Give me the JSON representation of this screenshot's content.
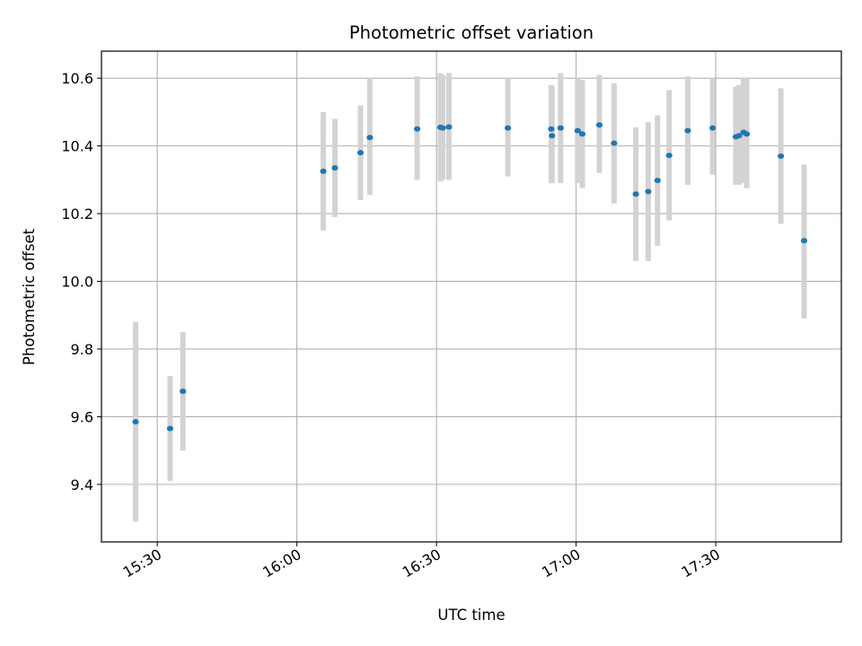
{
  "chart_data": {
    "type": "scatter",
    "title": "Photometric offset variation",
    "xlabel": "UTC time",
    "ylabel": "Photometric offset",
    "x_unit": "UTC time (HH:MM)",
    "xlim": [
      "15:18",
      "17:57"
    ],
    "ylim": [
      9.23,
      10.68
    ],
    "x_ticks": [
      "15:30",
      "16:00",
      "16:30",
      "17:00",
      "17:30"
    ],
    "y_ticks": [
      9.4,
      9.6,
      9.8,
      10.0,
      10.2,
      10.4,
      10.6
    ],
    "y_tick_labels": [
      "9.4",
      "9.6",
      "9.8",
      "10.0",
      "10.2",
      "10.4",
      "10.6"
    ],
    "grid": true,
    "legend": "none",
    "colors": {
      "point": "#1f77b4",
      "errorbar": "#d3d3d3",
      "grid": "#b0b0b0"
    },
    "points": [
      {
        "x": "15:25:20",
        "y": 9.585,
        "ylow": 9.29,
        "yhigh": 9.88
      },
      {
        "x": "15:32:45",
        "y": 9.565,
        "ylow": 9.41,
        "yhigh": 9.72
      },
      {
        "x": "15:35:30",
        "y": 9.675,
        "ylow": 9.5,
        "yhigh": 9.85
      },
      {
        "x": "16:05:40",
        "y": 10.325,
        "ylow": 10.15,
        "yhigh": 10.5
      },
      {
        "x": "16:08:10",
        "y": 10.335,
        "ylow": 10.19,
        "yhigh": 10.48
      },
      {
        "x": "16:13:40",
        "y": 10.38,
        "ylow": 10.24,
        "yhigh": 10.52
      },
      {
        "x": "16:15:40",
        "y": 10.425,
        "ylow": 10.255,
        "yhigh": 10.6
      },
      {
        "x": "16:25:50",
        "y": 10.45,
        "ylow": 10.3,
        "yhigh": 10.605
      },
      {
        "x": "16:30:50",
        "y": 10.455,
        "ylow": 10.295,
        "yhigh": 10.615
      },
      {
        "x": "16:31:20",
        "y": 10.453,
        "ylow": 10.3,
        "yhigh": 10.61
      },
      {
        "x": "16:32:40",
        "y": 10.456,
        "ylow": 10.3,
        "yhigh": 10.615
      },
      {
        "x": "16:45:20",
        "y": 10.453,
        "ylow": 10.31,
        "yhigh": 10.6
      },
      {
        "x": "16:54:40",
        "y": 10.45,
        "ylow": 10.29,
        "yhigh": 10.58
      },
      {
        "x": "16:54:50",
        "y": 10.43,
        "ylow": 10.29,
        "yhigh": 10.575
      },
      {
        "x": "16:56:40",
        "y": 10.453,
        "ylow": 10.29,
        "yhigh": 10.615
      },
      {
        "x": "17:00:20",
        "y": 10.445,
        "ylow": 10.29,
        "yhigh": 10.6
      },
      {
        "x": "17:01:20",
        "y": 10.435,
        "ylow": 10.275,
        "yhigh": 10.595
      },
      {
        "x": "17:05:00",
        "y": 10.462,
        "ylow": 10.32,
        "yhigh": 10.61
      },
      {
        "x": "17:08:10",
        "y": 10.408,
        "ylow": 10.23,
        "yhigh": 10.585
      },
      {
        "x": "17:12:50",
        "y": 10.258,
        "ylow": 10.06,
        "yhigh": 10.455
      },
      {
        "x": "17:15:30",
        "y": 10.265,
        "ylow": 10.06,
        "yhigh": 10.47
      },
      {
        "x": "17:17:30",
        "y": 10.298,
        "ylow": 10.105,
        "yhigh": 10.49
      },
      {
        "x": "17:20:00",
        "y": 10.372,
        "ylow": 10.18,
        "yhigh": 10.565
      },
      {
        "x": "17:24:00",
        "y": 10.445,
        "ylow": 10.285,
        "yhigh": 10.605
      },
      {
        "x": "17:29:20",
        "y": 10.453,
        "ylow": 10.315,
        "yhigh": 10.6
      },
      {
        "x": "17:34:20",
        "y": 10.427,
        "ylow": 10.285,
        "yhigh": 10.575
      },
      {
        "x": "17:35:00",
        "y": 10.43,
        "ylow": 10.285,
        "yhigh": 10.58
      },
      {
        "x": "17:36:00",
        "y": 10.44,
        "ylow": 10.29,
        "yhigh": 10.6
      },
      {
        "x": "17:36:40",
        "y": 10.435,
        "ylow": 10.275,
        "yhigh": 10.6
      },
      {
        "x": "17:44:00",
        "y": 10.37,
        "ylow": 10.17,
        "yhigh": 10.57
      },
      {
        "x": "17:49:00",
        "y": 10.12,
        "ylow": 9.89,
        "yhigh": 10.345
      }
    ]
  }
}
